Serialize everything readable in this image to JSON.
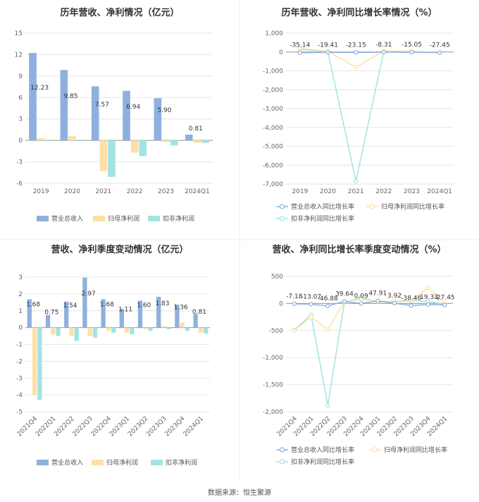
{
  "colors": {
    "revenue": "#8eb0de",
    "net": "#fde0a6",
    "ded": "#a2e3e3",
    "grid": "#e6e6e6"
  },
  "source": "数据来源：恒生聚源",
  "chart_data": [
    {
      "type": "bar",
      "title": "历年营收、净利情况（亿元）",
      "categories": [
        "2019",
        "2020",
        "2021",
        "2022",
        "2023",
        "2024Q1"
      ],
      "series": [
        {
          "name": "营业总收入",
          "values": [
            12.23,
            9.85,
            7.57,
            6.94,
            5.9,
            0.81
          ]
        },
        {
          "name": "归母净利润",
          "values": [
            0.3,
            0.6,
            -4.3,
            -1.7,
            -0.2,
            -0.35
          ]
        },
        {
          "name": "扣非净利润",
          "values": [
            0.1,
            0.1,
            -5.1,
            -2.2,
            -0.7,
            -0.35
          ]
        }
      ],
      "data_labels": [
        "12.23",
        "9.85",
        "7.57",
        "6.94",
        "5.90",
        "0.81"
      ],
      "yticks": [
        "15",
        "12",
        "9",
        "6",
        "3",
        "0",
        "-3",
        "-6"
      ],
      "ylim": [
        -6,
        15
      ],
      "legend": "bottom"
    },
    {
      "type": "line",
      "title": "历年营收、净利同比增长率情况（%）",
      "categories": [
        "2019",
        "2020",
        "2021",
        "2022",
        "2023",
        "2024Q1"
      ],
      "series": [
        {
          "name": "营业总收入同比增长率",
          "values": [
            -35.14,
            -19.41,
            -23.15,
            -8.31,
            -15.05,
            -27.45
          ]
        },
        {
          "name": "归母净利润同比增长率",
          "values": [
            200,
            30,
            -800,
            50,
            50,
            -30
          ]
        },
        {
          "name": "扣非净利润同比增长率",
          "values": [
            150,
            10,
            -6850,
            30,
            30,
            -30
          ]
        }
      ],
      "data_labels": [
        "-35.14",
        "-19.41",
        "-23.15",
        "-8.31",
        "-15.05",
        "-27.45"
      ],
      "yticks": [
        "1,000",
        "0",
        "-1,000",
        "-2,000",
        "-3,000",
        "-4,000",
        "-5,000",
        "-6,000",
        "-7,000"
      ],
      "ylim": [
        -7000,
        1000
      ],
      "legend": "bottom"
    },
    {
      "type": "bar",
      "title": "营收、净利季度变动情况（亿元）",
      "categories": [
        "2021Q4",
        "2022Q1",
        "2022Q2",
        "2022Q3",
        "2022Q4",
        "2023Q1",
        "2023Q2",
        "2023Q3",
        "2023Q4",
        "2024Q1"
      ],
      "series": [
        {
          "name": "营业总收入",
          "values": [
            1.68,
            0.75,
            1.54,
            2.97,
            1.68,
            1.11,
            1.6,
            1.83,
            1.36,
            0.81
          ]
        },
        {
          "name": "归母净利润",
          "values": [
            -4.0,
            -0.4,
            -0.5,
            -0.5,
            -0.2,
            -0.3,
            -0.1,
            0.1,
            0.3,
            -0.3
          ]
        },
        {
          "name": "扣非净利润",
          "values": [
            -4.3,
            -0.5,
            -0.8,
            -0.6,
            -0.3,
            -0.4,
            -0.2,
            -0.1,
            -0.2,
            -0.35
          ]
        }
      ],
      "data_labels": [
        "1.68",
        "0.75",
        "1.54",
        "2.97",
        "1.68",
        "1.11",
        "1.60",
        "1.83",
        "1.36",
        "0.81"
      ],
      "yticks": [
        "3",
        "2",
        "1",
        "0",
        "-1",
        "-2",
        "-3",
        "-4",
        "-5"
      ],
      "ylim": [
        -5,
        3
      ],
      "legend": "bottom"
    },
    {
      "type": "line",
      "title": "营收、净利同比增长率季度变动情况（%）",
      "categories": [
        "2021Q4",
        "2022Q1",
        "2022Q2",
        "2022Q3",
        "2022Q4",
        "2023Q1",
        "2023Q2",
        "2023Q3",
        "2023Q4",
        "2024Q1"
      ],
      "series": [
        {
          "name": "营业总收入同比增长率",
          "values": [
            -7.18,
            -13.07,
            -46.88,
            39.64,
            0.09,
            47.91,
            3.92,
            -38.4,
            -19.33,
            -27.45
          ]
        },
        {
          "name": "归母净利润同比增长率",
          "values": [
            -500,
            -250,
            -480,
            30,
            80,
            40,
            40,
            60,
            290,
            10
          ]
        },
        {
          "name": "扣非净利润同比增长率",
          "values": [
            -490,
            -210,
            -1880,
            20,
            110,
            30,
            30,
            50,
            40,
            -20
          ]
        }
      ],
      "data_labels": [
        "-7.18",
        "-13.07",
        "-46.88",
        "39.64",
        "0.09",
        "47.91",
        "3.92",
        "-38.40",
        "-19.33",
        "-27.45"
      ],
      "yticks": [
        "500",
        "0",
        "-500",
        "-1,000",
        "-1,500",
        "-2,000"
      ],
      "ylim": [
        -2000,
        500
      ],
      "legend": "bottom"
    }
  ]
}
